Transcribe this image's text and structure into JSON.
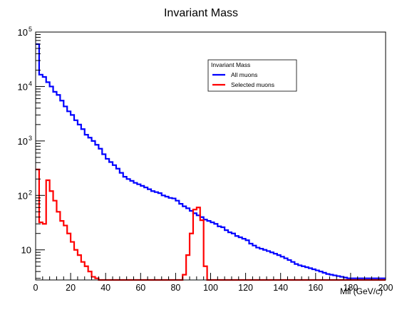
{
  "chart_data": {
    "type": "line",
    "title": "Invariant Mass",
    "xlabel": "Mll (GeV/c)",
    "ylabel": "",
    "xlim": [
      0,
      200
    ],
    "ylim": [
      2.8,
      100000
    ],
    "y_scale": "log",
    "grid": false,
    "legend": {
      "title": "Invariant Mass",
      "placement": "top-right"
    },
    "x_ticks": [
      "0",
      "20",
      "40",
      "60",
      "80",
      "100",
      "120",
      "140",
      "160",
      "180",
      "200"
    ],
    "y_ticks": [
      {
        "value": 10,
        "base": "10",
        "exp": ""
      },
      {
        "value": 100,
        "base": "10",
        "exp": "2"
      },
      {
        "value": 1000,
        "base": "10",
        "exp": "3"
      },
      {
        "value": 10000,
        "base": "10",
        "exp": "4"
      },
      {
        "value": 100000,
        "base": "10",
        "exp": "5"
      }
    ],
    "bin_edges_start": 0,
    "bin_width": 2,
    "series": [
      {
        "name": "All muons",
        "color": "#0000ff",
        "values": [
          60000,
          16500,
          15000,
          12000,
          10000,
          8000,
          7000,
          5500,
          4300,
          3500,
          3000,
          2400,
          2000,
          1650,
          1300,
          1150,
          1000,
          850,
          720,
          570,
          470,
          410,
          360,
          310,
          260,
          220,
          200,
          185,
          170,
          160,
          150,
          140,
          130,
          120,
          115,
          110,
          100,
          95,
          90,
          88,
          80,
          70,
          63,
          58,
          52,
          47,
          43,
          40,
          36,
          34,
          32,
          30,
          27,
          26,
          23,
          21,
          20,
          18,
          17,
          16,
          15,
          13,
          12,
          11,
          10.5,
          10,
          9.5,
          9,
          8.5,
          8,
          7.5,
          7,
          6.5,
          6,
          5.5,
          5.2,
          5,
          4.8,
          4.6,
          4.4,
          4.2,
          4,
          3.8,
          3.6,
          3.5,
          3.4,
          3.3,
          3.2,
          3.1,
          3,
          3,
          3,
          3,
          3,
          3,
          3,
          3,
          3,
          3,
          3
        ]
      },
      {
        "name": "Selected muons",
        "color": "#ff0000",
        "values": [
          300,
          32,
          30,
          190,
          120,
          80,
          50,
          34,
          28,
          20,
          14,
          10,
          8,
          6,
          5,
          4,
          3.2,
          3,
          2.8,
          2.8,
          2.8,
          2.8,
          2.8,
          2.8,
          2.8,
          2.8,
          2.8,
          2.8,
          2.8,
          2.8,
          2.8,
          2.8,
          2.8,
          2.8,
          2.8,
          2.8,
          2.8,
          2.8,
          2.8,
          2.8,
          2.8,
          2.8,
          3.5,
          8,
          20,
          55,
          60,
          35,
          5,
          2.8,
          2.8,
          2.8,
          2.8,
          2.8,
          2.8,
          2.8,
          2.8,
          2.8,
          2.8,
          2.8,
          2.8,
          2.8,
          2.8,
          2.8,
          2.8,
          2.8,
          2.8,
          2.8,
          2.8,
          2.8,
          2.8,
          2.8,
          2.8,
          2.8,
          2.8,
          2.8,
          2.8,
          2.8,
          2.8,
          2.8,
          2.8,
          2.8,
          2.8,
          2.8,
          2.8,
          2.8,
          2.8,
          2.8,
          2.8,
          2.8,
          2.8,
          2.8,
          2.8,
          2.8,
          2.8,
          2.8,
          2.8,
          2.8,
          2.8,
          2.8
        ]
      }
    ]
  }
}
